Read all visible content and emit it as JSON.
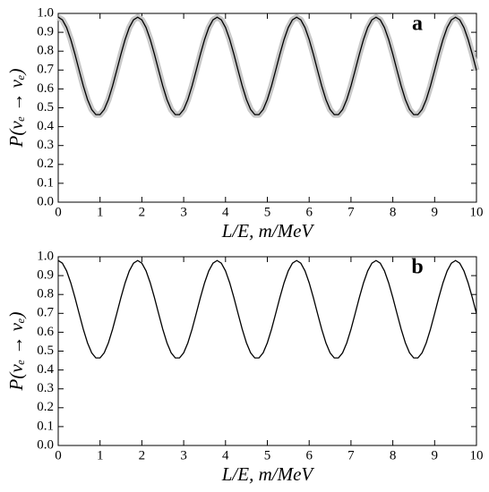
{
  "chart_data": [
    {
      "type": "line",
      "panel_label": "a",
      "xlabel": "L/E, m/MeV",
      "ylabel": "P(νₑ → νₑ)",
      "uncertainty_band": true,
      "xlim": [
        0,
        10
      ],
      "xticks": [
        0,
        1,
        2,
        3,
        4,
        5,
        6,
        7,
        8,
        9,
        10
      ],
      "ylim": [
        0,
        1
      ],
      "yticks": [
        {
          "value": 0,
          "label": "0.0"
        },
        {
          "value": 0.1,
          "label": "0.1"
        },
        {
          "value": 0.2,
          "label": "0.2"
        },
        {
          "value": 0.3,
          "label": "0.3"
        },
        {
          "value": 0.4,
          "label": "0.4"
        },
        {
          "value": 0.5,
          "label": "0.5"
        },
        {
          "value": 0.6,
          "label": "0.6"
        },
        {
          "value": 0.7,
          "label": "0.7"
        },
        {
          "value": 0.8,
          "label": "0.8"
        },
        {
          "value": 0.9,
          "label": "0.9"
        },
        {
          "value": 1,
          "label": "1.0"
        }
      ],
      "x": [
        0,
        0.1,
        0.2,
        0.3,
        0.4,
        0.5,
        0.6,
        0.7,
        0.8,
        0.9,
        1,
        1.1,
        1.2,
        1.3,
        1.4,
        1.5,
        1.6,
        1.7,
        1.8,
        1.9,
        2,
        2.1,
        2.2,
        2.3,
        2.4,
        2.5,
        2.6,
        2.7,
        2.8,
        2.9,
        3,
        3.1,
        3.2,
        3.3,
        3.4,
        3.5,
        3.6,
        3.7,
        3.8,
        3.9,
        4,
        4.1,
        4.2,
        4.3,
        4.4,
        4.5,
        4.6,
        4.7,
        4.8,
        4.9,
        5,
        5.1,
        5.2,
        5.3,
        5.4,
        5.5,
        5.6,
        5.7,
        5.8,
        5.9,
        6,
        6.1,
        6.2,
        6.3,
        6.4,
        6.5,
        6.6,
        6.7,
        6.8,
        6.9,
        7,
        7.1,
        7.2,
        7.3,
        7.4,
        7.5,
        7.6,
        7.7,
        7.8,
        7.9,
        8,
        8.1,
        8.2,
        8.3,
        8.4,
        8.5,
        8.6,
        8.7,
        8.8,
        8.9,
        9,
        9.1,
        9.2,
        9.3,
        9.4,
        9.5,
        9.6,
        9.7,
        9.8,
        9.9,
        10
      ],
      "series": [
        {
          "color": "#000000",
          "values": [
            0.98,
            0.966,
            0.925,
            0.862,
            0.784,
            0.699,
            0.616,
            0.544,
            0.491,
            0.464,
            0.464,
            0.491,
            0.544,
            0.616,
            0.699,
            0.784,
            0.862,
            0.925,
            0.966,
            0.98,
            0.966,
            0.925,
            0.862,
            0.784,
            0.699,
            0.616,
            0.544,
            0.491,
            0.464,
            0.464,
            0.491,
            0.544,
            0.616,
            0.699,
            0.784,
            0.862,
            0.925,
            0.966,
            0.98,
            0.966,
            0.925,
            0.862,
            0.784,
            0.699,
            0.616,
            0.544,
            0.491,
            0.464,
            0.464,
            0.491,
            0.544,
            0.616,
            0.699,
            0.784,
            0.862,
            0.925,
            0.966,
            0.98,
            0.966,
            0.925,
            0.862,
            0.784,
            0.699,
            0.616,
            0.544,
            0.491,
            0.464,
            0.464,
            0.491,
            0.544,
            0.616,
            0.699,
            0.784,
            0.862,
            0.925,
            0.966,
            0.98,
            0.966,
            0.925,
            0.862,
            0.784,
            0.699,
            0.616,
            0.544,
            0.491,
            0.464,
            0.464,
            0.491,
            0.544,
            0.616,
            0.699,
            0.784,
            0.862,
            0.925,
            0.966,
            0.98,
            0.966,
            0.925,
            0.862,
            0.784,
            0.699
          ]
        }
      ]
    },
    {
      "type": "line",
      "panel_label": "b",
      "xlabel": "L/E, m/MeV",
      "ylabel": "P(νₑ → νₑ)",
      "uncertainty_band": false,
      "xlim": [
        0,
        10
      ],
      "xticks": [
        0,
        1,
        2,
        3,
        4,
        5,
        6,
        7,
        8,
        9,
        10
      ],
      "ylim": [
        0,
        1
      ],
      "yticks": [
        {
          "value": 0,
          "label": "0.0"
        },
        {
          "value": 0.1,
          "label": "0.1"
        },
        {
          "value": 0.2,
          "label": "0.2"
        },
        {
          "value": 0.3,
          "label": "0.3"
        },
        {
          "value": 0.4,
          "label": "0.4"
        },
        {
          "value": 0.5,
          "label": "0.5"
        },
        {
          "value": 0.6,
          "label": "0.6"
        },
        {
          "value": 0.7,
          "label": "0.7"
        },
        {
          "value": 0.8,
          "label": "0.8"
        },
        {
          "value": 0.9,
          "label": "0.9"
        },
        {
          "value": 1,
          "label": "1.0"
        }
      ],
      "x": [
        0,
        0.1,
        0.2,
        0.3,
        0.4,
        0.5,
        0.6,
        0.7,
        0.8,
        0.9,
        1,
        1.1,
        1.2,
        1.3,
        1.4,
        1.5,
        1.6,
        1.7,
        1.8,
        1.9,
        2,
        2.1,
        2.2,
        2.3,
        2.4,
        2.5,
        2.6,
        2.7,
        2.8,
        2.9,
        3,
        3.1,
        3.2,
        3.3,
        3.4,
        3.5,
        3.6,
        3.7,
        3.8,
        3.9,
        4,
        4.1,
        4.2,
        4.3,
        4.4,
        4.5,
        4.6,
        4.7,
        4.8,
        4.9,
        5,
        5.1,
        5.2,
        5.3,
        5.4,
        5.5,
        5.6,
        5.7,
        5.8,
        5.9,
        6,
        6.1,
        6.2,
        6.3,
        6.4,
        6.5,
        6.6,
        6.7,
        6.8,
        6.9,
        7,
        7.1,
        7.2,
        7.3,
        7.4,
        7.5,
        7.6,
        7.7,
        7.8,
        7.9,
        8,
        8.1,
        8.2,
        8.3,
        8.4,
        8.5,
        8.6,
        8.7,
        8.8,
        8.9,
        9,
        9.1,
        9.2,
        9.3,
        9.4,
        9.5,
        9.6,
        9.7,
        9.8,
        9.9,
        10
      ],
      "series": [
        {
          "color": "#000000",
          "values": [
            0.98,
            0.966,
            0.925,
            0.862,
            0.784,
            0.699,
            0.616,
            0.544,
            0.491,
            0.464,
            0.464,
            0.491,
            0.544,
            0.616,
            0.699,
            0.784,
            0.862,
            0.925,
            0.966,
            0.98,
            0.966,
            0.925,
            0.862,
            0.784,
            0.699,
            0.616,
            0.544,
            0.491,
            0.464,
            0.464,
            0.491,
            0.544,
            0.616,
            0.699,
            0.784,
            0.862,
            0.925,
            0.966,
            0.98,
            0.966,
            0.925,
            0.862,
            0.784,
            0.699,
            0.616,
            0.544,
            0.491,
            0.464,
            0.464,
            0.491,
            0.544,
            0.616,
            0.699,
            0.784,
            0.862,
            0.925,
            0.966,
            0.98,
            0.966,
            0.925,
            0.862,
            0.784,
            0.699,
            0.616,
            0.544,
            0.491,
            0.464,
            0.464,
            0.491,
            0.544,
            0.616,
            0.699,
            0.784,
            0.862,
            0.925,
            0.966,
            0.98,
            0.966,
            0.925,
            0.862,
            0.784,
            0.699,
            0.616,
            0.544,
            0.491,
            0.464,
            0.464,
            0.491,
            0.544,
            0.616,
            0.699,
            0.784,
            0.862,
            0.925,
            0.966,
            0.98,
            0.966,
            0.925,
            0.862,
            0.784,
            0.699
          ]
        }
      ]
    }
  ]
}
